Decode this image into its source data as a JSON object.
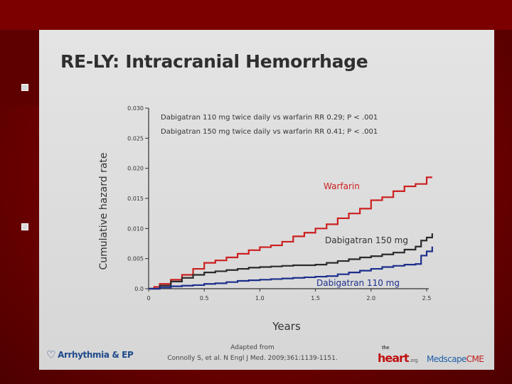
{
  "slide": {
    "title": "RE-LY: Intracranial Hemorrhage",
    "footer": {
      "source_line1": "Adapted from",
      "source_line2": "Connolly S, et al. N Engl J Med. 2009;361:1139-1151.",
      "logo_left": "Arrhythmia & EP",
      "logo_heart_the": "the",
      "logo_heart_main": "heart",
      "logo_heart_org": ".org",
      "logo_med_a": "Medscape",
      "logo_med_b": "CME"
    },
    "annotations": {
      "line1": "Dabigatran 110 mg twice daily vs warfarin RR 0.29; P < .001",
      "line2": "Dabigatran 150 mg twice daily vs warfarin RR 0.41; P < .001"
    }
  },
  "colors": {
    "warfarin": "#cc1f1f",
    "dabigatran150": "#2b2b2b",
    "dabigatran110": "#1c2f8c"
  },
  "chart_data": {
    "type": "line",
    "ylabel": "Cumulative hazard rate",
    "xlabel": "Years",
    "xlim": [
      0,
      2.5
    ],
    "ylim": [
      0,
      0.03
    ],
    "x_ticks": [
      "0",
      "0.5",
      "1.0",
      "1.5",
      "2.0",
      "2.5"
    ],
    "y_ticks": [
      "0.0",
      "0.005",
      "0.010",
      "0.015",
      "0.020",
      "0.025",
      "0.030"
    ],
    "grid": false,
    "series": [
      {
        "name": "Warfarin",
        "color_key": "warfarin",
        "x": [
          0,
          0.05,
          0.1,
          0.2,
          0.3,
          0.4,
          0.5,
          0.6,
          0.7,
          0.8,
          0.9,
          1.0,
          1.1,
          1.2,
          1.3,
          1.4,
          1.5,
          1.6,
          1.7,
          1.8,
          1.9,
          2.0,
          2.1,
          2.2,
          2.3,
          2.4,
          2.5,
          2.55
        ],
        "y": [
          0,
          0.0003,
          0.0008,
          0.0015,
          0.0023,
          0.0033,
          0.0043,
          0.0047,
          0.0052,
          0.0058,
          0.0064,
          0.0069,
          0.0072,
          0.0078,
          0.0087,
          0.0093,
          0.01,
          0.0107,
          0.0117,
          0.0125,
          0.0133,
          0.0147,
          0.0152,
          0.0162,
          0.017,
          0.0174,
          0.0185,
          0.0185
        ]
      },
      {
        "name": "Dabigatran 150 mg",
        "color_key": "dabigatran150",
        "x": [
          0,
          0.1,
          0.2,
          0.3,
          0.4,
          0.5,
          0.6,
          0.7,
          0.8,
          0.9,
          1.0,
          1.1,
          1.2,
          1.3,
          1.4,
          1.5,
          1.6,
          1.7,
          1.8,
          1.9,
          2.0,
          2.1,
          2.2,
          2.3,
          2.4,
          2.45,
          2.5,
          2.55
        ],
        "y": [
          0,
          0.0005,
          0.0012,
          0.0018,
          0.0023,
          0.0027,
          0.0029,
          0.0031,
          0.0033,
          0.0035,
          0.0036,
          0.0037,
          0.0038,
          0.0039,
          0.0039,
          0.004,
          0.0043,
          0.0046,
          0.0049,
          0.0052,
          0.0054,
          0.0057,
          0.006,
          0.0065,
          0.007,
          0.008,
          0.0085,
          0.0092
        ]
      },
      {
        "name": "Dabigatran 110 mg",
        "color_key": "dabigatran110",
        "x": [
          0,
          0.1,
          0.2,
          0.3,
          0.4,
          0.5,
          0.6,
          0.7,
          0.8,
          0.9,
          1.0,
          1.1,
          1.2,
          1.3,
          1.4,
          1.5,
          1.6,
          1.7,
          1.8,
          1.9,
          2.0,
          2.1,
          2.2,
          2.3,
          2.4,
          2.45,
          2.5,
          2.55
        ],
        "y": [
          0,
          0.0002,
          0.0004,
          0.0005,
          0.0006,
          0.0008,
          0.0009,
          0.0011,
          0.0013,
          0.0014,
          0.0015,
          0.0016,
          0.0017,
          0.0018,
          0.0019,
          0.002,
          0.0021,
          0.0024,
          0.0027,
          0.003,
          0.0033,
          0.0036,
          0.0038,
          0.004,
          0.0041,
          0.0055,
          0.0062,
          0.007
        ]
      }
    ]
  }
}
